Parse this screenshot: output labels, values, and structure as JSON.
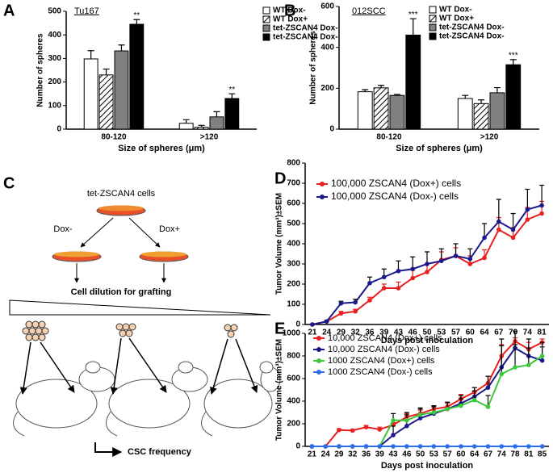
{
  "chart_data": [
    {
      "type": "bar",
      "panel": "A",
      "title": "Tu167",
      "ylabel": "Number of spheres",
      "xlabel": "Size of spheres (μm)",
      "categories": [
        "80-120",
        ">120"
      ],
      "ylim": [
        0,
        500
      ],
      "yticks": [
        0,
        100,
        200,
        300,
        400,
        500
      ],
      "series": [
        {
          "name": "WT Dox-",
          "color": "#ffffff",
          "values": [
            298,
            25
          ],
          "errors": [
            35,
            15
          ]
        },
        {
          "name": "WT Dox+",
          "color": "#ffffff",
          "hatch": true,
          "values": [
            230,
            8
          ],
          "errors": [
            25,
            8
          ]
        },
        {
          "name": "tet-ZSCAN4 Dox-",
          "color": "#808080",
          "values": [
            332,
            52
          ],
          "errors": [
            25,
            22
          ]
        },
        {
          "name": "tet-ZSCAN4 Dox-",
          "color": "#000000",
          "values": [
            445,
            130
          ],
          "errors": [
            20,
            20
          ],
          "annotations": [
            "**",
            "**"
          ]
        }
      ]
    },
    {
      "type": "bar",
      "panel": "B",
      "title": "012SCC",
      "ylabel": "Number of spheres",
      "xlabel": "Size of spheres (μm)",
      "categories": [
        "80-120",
        ">120"
      ],
      "ylim": [
        0,
        600
      ],
      "yticks": [
        0,
        200,
        400,
        600
      ],
      "series": [
        {
          "name": "WT Dox-",
          "color": "#ffffff",
          "values": [
            183,
            150
          ],
          "errors": [
            10,
            15
          ]
        },
        {
          "name": "WT Dox+",
          "color": "#ffffff",
          "hatch": true,
          "values": [
            202,
            125
          ],
          "errors": [
            12,
            18
          ]
        },
        {
          "name": "tet-ZSCAN4 Dox-",
          "color": "#808080",
          "values": [
            165,
            178
          ],
          "errors": [
            5,
            25
          ]
        },
        {
          "name": "tet-ZSCAN4 Dox-",
          "color": "#000000",
          "values": [
            460,
            315
          ],
          "errors": [
            80,
            25
          ],
          "annotations": [
            "***",
            "***"
          ]
        }
      ]
    },
    {
      "type": "line",
      "panel": "D",
      "ylabel": "Tumor Volume (mm³)±SEM",
      "xlabel": "Days post inoculation",
      "categories": [
        "21",
        "24",
        "29",
        "32",
        "36",
        "39",
        "43",
        "46",
        "50",
        "53",
        "57",
        "60",
        "64",
        "67",
        "70",
        "74",
        "81"
      ],
      "ylim": [
        0,
        800
      ],
      "yticks": [
        0,
        100,
        200,
        300,
        400,
        500,
        600,
        700,
        800
      ],
      "series": [
        {
          "name": "100,000 ZSCAN4 (Dox+) cells",
          "color": "#e8201f",
          "values": [
            0,
            15,
            55,
            65,
            120,
            180,
            180,
            230,
            260,
            320,
            340,
            300,
            330,
            470,
            430,
            520,
            550
          ],
          "errors": [
            0,
            5,
            10,
            10,
            15,
            20,
            30,
            40,
            40,
            40,
            40,
            40,
            40,
            60,
            50,
            60,
            60
          ]
        },
        {
          "name": "100,000 ZSCAN4 (Dox-) cells",
          "color": "#1a1a8c",
          "values": [
            0,
            15,
            105,
            110,
            205,
            235,
            265,
            275,
            300,
            315,
            340,
            325,
            430,
            510,
            470,
            570,
            590
          ],
          "errors": [
            0,
            5,
            10,
            15,
            30,
            40,
            50,
            60,
            60,
            60,
            60,
            50,
            70,
            110,
            80,
            100,
            100
          ]
        }
      ]
    },
    {
      "type": "line",
      "panel": "E",
      "ylabel": "Tumor Volume (mm³)±SEM",
      "xlabel": "Days post inoculation",
      "categories": [
        "21",
        "24",
        "29",
        "32",
        "36",
        "39",
        "43",
        "46",
        "50",
        "53",
        "57",
        "60",
        "64",
        "67",
        "74",
        "78",
        "81",
        "85"
      ],
      "ylim": [
        0,
        1000
      ],
      "yticks": [
        0,
        200,
        400,
        600,
        800,
        1000
      ],
      "series": [
        {
          "name": "10,000 ZSCAN4 (Dox+) cells",
          "color": "#e8201f",
          "values": [
            0,
            0,
            145,
            140,
            170,
            150,
            190,
            260,
            290,
            330,
            350,
            420,
            480,
            560,
            800,
            930,
            860,
            920
          ],
          "errors": [
            0,
            0,
            10,
            10,
            15,
            20,
            20,
            30,
            30,
            30,
            30,
            40,
            40,
            60,
            100,
            30,
            60,
            30
          ]
        },
        {
          "name": "10,000 ZSCAN4 (Dox-) cells",
          "color": "#1a1a8c",
          "values": [
            0,
            0,
            0,
            0,
            0,
            0,
            100,
            180,
            250,
            290,
            330,
            380,
            440,
            520,
            700,
            870,
            800,
            760
          ],
          "errors": [
            0,
            0,
            0,
            0,
            0,
            0,
            80,
            100,
            80,
            60,
            60,
            70,
            80,
            100,
            250,
            150,
            150,
            120
          ]
        },
        {
          "name": "1000 ZSCAN4 (Dox+) cells",
          "color": "#3cc83c",
          "values": [
            0,
            0,
            0,
            0,
            0,
            0,
            230,
            230,
            280,
            300,
            330,
            360,
            410,
            350,
            640,
            700,
            720,
            800
          ],
          "errors": [
            0,
            0,
            0,
            0,
            0,
            0,
            60,
            70,
            60,
            60,
            60,
            60,
            80,
            100,
            250,
            200,
            150,
            120
          ]
        },
        {
          "name": "1000 ZSCAN4 (Dox-) cells",
          "color": "#2d6ef0",
          "values": [
            0,
            0,
            0,
            0,
            0,
            0,
            0,
            0,
            0,
            0,
            0,
            0,
            0,
            0,
            0,
            0,
            0,
            0
          ]
        }
      ]
    }
  ],
  "diagram": {
    "label": "C",
    "source": "tet-ZSCAN4 cells",
    "left": "Dox-",
    "right": "Dox+",
    "step": "Cell dilution for grafting",
    "result": "CSC frequency"
  }
}
